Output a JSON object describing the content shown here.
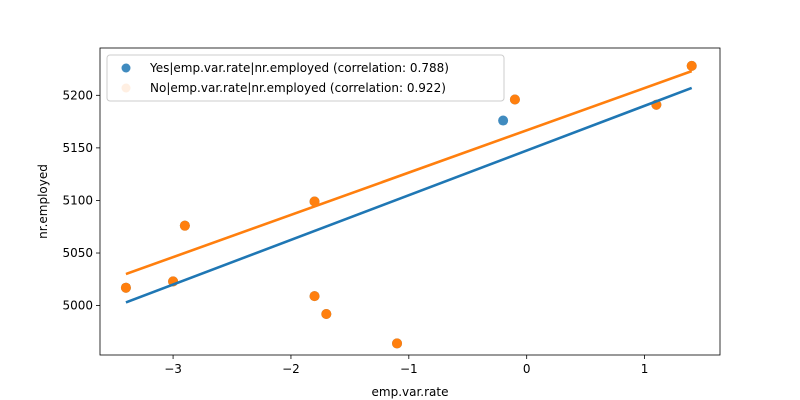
{
  "chart_data": {
    "type": "scatter",
    "xlabel": "emp.var.rate",
    "ylabel": "nr.employed",
    "xlim": [
      -3.62,
      1.64
    ],
    "ylim": [
      4953,
      5245
    ],
    "xticks": [
      -3,
      -2,
      -1,
      0,
      1
    ],
    "yticks": [
      5000,
      5050,
      5100,
      5150,
      5200
    ],
    "legend_position": "top-left",
    "series": [
      {
        "name": "Yes|emp.var.rate|nr.employed (correlation: 0.788)",
        "color": "#1f77b4",
        "points": [
          {
            "x": -3.4,
            "y": 5017
          },
          {
            "x": -3.0,
            "y": 5023
          },
          {
            "x": -2.9,
            "y": 5076
          },
          {
            "x": -1.8,
            "y": 5099
          },
          {
            "x": -1.8,
            "y": 5009
          },
          {
            "x": -1.7,
            "y": 4992
          },
          {
            "x": -1.1,
            "y": 4964
          },
          {
            "x": -0.2,
            "y": 5176
          },
          {
            "x": -0.1,
            "y": 5196
          },
          {
            "x": 1.1,
            "y": 5191
          },
          {
            "x": 1.4,
            "y": 5228
          }
        ],
        "fit": {
          "x": [
            -3.4,
            1.4
          ],
          "y": [
            5003,
            5207
          ]
        }
      },
      {
        "name": "No|emp.var.rate|nr.employed (correlation: 0.922)",
        "color": "#ff7f0e",
        "points": [
          {
            "x": -3.4,
            "y": 5017
          },
          {
            "x": -3.0,
            "y": 5023
          },
          {
            "x": -2.9,
            "y": 5076
          },
          {
            "x": -1.8,
            "y": 5099
          },
          {
            "x": -1.8,
            "y": 5009
          },
          {
            "x": -1.7,
            "y": 4992
          },
          {
            "x": -1.1,
            "y": 4964
          },
          {
            "x": -0.1,
            "y": 5196
          },
          {
            "x": 1.1,
            "y": 5191
          },
          {
            "x": 1.4,
            "y": 5228
          }
        ],
        "fit": {
          "x": [
            -3.4,
            1.4
          ],
          "y": [
            5030,
            5223
          ]
        }
      }
    ]
  }
}
